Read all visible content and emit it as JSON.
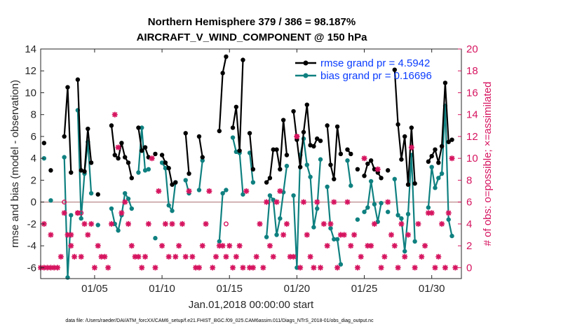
{
  "chart_data": {
    "type": "line",
    "title_line1": "Northern Hemisphere 379 / 386 = 98.187%",
    "title_line2": "AIRCRAFT_V_WIND_COMPONENT @ 150 hPa",
    "xlabel": "Jan.01,2018 00:00:00 start",
    "ylabel": "rmse and bias (model - observation)",
    "y2label": "# of obs: o=possible; ×=assimilated",
    "xlim": [
      1.0,
      32.2
    ],
    "ylim": [
      -7,
      14
    ],
    "y2lim": [
      -1,
      20
    ],
    "xticks": [
      5,
      10,
      15,
      20,
      25,
      30
    ],
    "xtick_labels": [
      "01/05",
      "01/10",
      "01/15",
      "01/20",
      "01/25",
      "01/30"
    ],
    "yticks": [
      -6,
      -4,
      -2,
      0,
      2,
      4,
      6,
      8,
      10,
      12,
      14
    ],
    "y2ticks": [
      0,
      2,
      4,
      6,
      8,
      10,
      12,
      14,
      16,
      18,
      20
    ],
    "colors": {
      "rmse": "#000000",
      "bias": "#0f8080",
      "obs": "#d6145f",
      "zero_line": "#c8a0a0",
      "axis": "#262626",
      "legend_text": "#0a3cff"
    },
    "series": [
      {
        "name": "rmse",
        "legend": "rmse grand pr = 4.5942",
        "points": [
          [
            1.25,
            5.4
          ],
          [
            1.75,
            2.9
          ],
          [
            2.75,
            6.0
          ],
          [
            3.0,
            10.5
          ],
          [
            3.25,
            2.7
          ],
          [
            3.75,
            11.2
          ],
          [
            4.0,
            2.9
          ],
          [
            4.25,
            2.8
          ],
          [
            4.5,
            6.7
          ],
          [
            4.75,
            3.6
          ],
          [
            5.25,
            0.7
          ],
          [
            6.25,
            7.0
          ],
          [
            6.5,
            4.3
          ],
          [
            6.75,
            4.0
          ],
          [
            7.0,
            5.4
          ],
          [
            7.25,
            4.1
          ],
          [
            7.5,
            3.6
          ],
          [
            7.75,
            2.2
          ],
          [
            8.25,
            6.8
          ],
          [
            8.5,
            4.7
          ],
          [
            8.75,
            5.0
          ],
          [
            9.0,
            4.1
          ],
          [
            9.5,
            4.4
          ],
          [
            10.0,
            4.3
          ],
          [
            10.25,
            3.6
          ],
          [
            10.5,
            3.1
          ],
          [
            10.75,
            1.6
          ],
          [
            11.0,
            1.8
          ],
          [
            11.75,
            6.3
          ],
          [
            12.0,
            2.6
          ],
          [
            12.75,
            6.0
          ],
          [
            13.0,
            4.1
          ],
          [
            14.25,
            6.5
          ],
          [
            14.5,
            11.8
          ],
          [
            14.75,
            13.3
          ],
          [
            15.25,
            6.8
          ],
          [
            15.5,
            8.7
          ],
          [
            15.75,
            4.7
          ],
          [
            16.0,
            13.0
          ],
          [
            16.5,
            6.3
          ],
          [
            16.75,
            3.0
          ],
          [
            17.75,
            1.8
          ],
          [
            18.0,
            2.2
          ],
          [
            18.25,
            4.8
          ],
          [
            18.5,
            4.8
          ],
          [
            18.75,
            3.0
          ],
          [
            19.0,
            7.5
          ],
          [
            19.25,
            4.3
          ],
          [
            19.75,
            8.3
          ],
          [
            20.0,
            5.7
          ],
          [
            20.25,
            3.2
          ],
          [
            20.5,
            6.4
          ],
          [
            20.75,
            8.9
          ],
          [
            21.0,
            5.2
          ],
          [
            21.25,
            5.1
          ],
          [
            21.5,
            5.8
          ],
          [
            21.75,
            5.6
          ],
          [
            22.25,
            7.0
          ],
          [
            22.5,
            3.4
          ],
          [
            22.75,
            2.1
          ],
          [
            23.0,
            6.9
          ],
          [
            23.25,
            4.4
          ],
          [
            23.75,
            4.8
          ],
          [
            24.0,
            4.4
          ],
          [
            24.5,
            3.0
          ],
          [
            25.0,
            2.4
          ],
          [
            25.25,
            3.5
          ],
          [
            25.5,
            3.8
          ],
          [
            25.75,
            3.0
          ],
          [
            26.0,
            2.7
          ],
          [
            26.25,
            2.2
          ],
          [
            26.75,
            2.9
          ],
          [
            27.25,
            12.1
          ],
          [
            27.5,
            7.1
          ],
          [
            27.75,
            3.9
          ],
          [
            28.0,
            6.0
          ],
          [
            28.25,
            1.6
          ],
          [
            28.5,
            6.8
          ],
          [
            28.75,
            1.7
          ],
          [
            29.75,
            3.7
          ],
          [
            30.0,
            4.2
          ],
          [
            30.25,
            4.8
          ],
          [
            30.5,
            3.6
          ],
          [
            30.75,
            5.1
          ],
          [
            31.0,
            10.9
          ],
          [
            31.25,
            5.5
          ],
          [
            31.5,
            5.7
          ]
        ]
      },
      {
        "name": "bias",
        "legend": "bias grand pr = 0.16696",
        "points": [
          [
            1.25,
            4.0
          ],
          [
            1.75,
            0.15
          ],
          [
            2.75,
            4.1
          ],
          [
            3.0,
            -6.9
          ],
          [
            3.25,
            -1.2
          ],
          [
            3.75,
            8.4
          ],
          [
            4.0,
            -1.5
          ],
          [
            4.25,
            2.6
          ],
          [
            4.5,
            5.5
          ],
          [
            4.75,
            0.8
          ],
          [
            5.25,
            -2.1
          ],
          [
            6.25,
            -0.6
          ],
          [
            6.5,
            -2.0
          ],
          [
            6.75,
            -2.6
          ],
          [
            7.0,
            -1.2
          ],
          [
            7.25,
            0.8
          ],
          [
            7.5,
            0.3
          ],
          [
            7.75,
            -0.6
          ],
          [
            8.25,
            2.7
          ],
          [
            8.5,
            6.8
          ],
          [
            8.75,
            2.9
          ],
          [
            9.0,
            3.0
          ],
          [
            9.5,
            -3.3
          ],
          [
            10.0,
            3.6
          ],
          [
            10.25,
            3.1
          ],
          [
            10.5,
            -0.3
          ],
          [
            10.75,
            -0.8
          ],
          [
            11.0,
            1.8
          ],
          [
            11.75,
            2.0
          ],
          [
            12.0,
            0.8
          ],
          [
            12.75,
            1.1
          ],
          [
            13.0,
            3.8
          ],
          [
            14.25,
            -3.6
          ],
          [
            14.5,
            0.8
          ],
          [
            14.75,
            1.1
          ],
          [
            15.25,
            5.9
          ],
          [
            15.5,
            4.6
          ],
          [
            15.75,
            4.5
          ],
          [
            16.0,
            0.7
          ],
          [
            16.5,
            4.5
          ],
          [
            16.75,
            1.8
          ],
          [
            17.75,
            -3.2
          ],
          [
            18.0,
            0.6
          ],
          [
            18.25,
            0.2
          ],
          [
            18.5,
            -3.0
          ],
          [
            18.75,
            -1.5
          ],
          [
            19.0,
            0.9
          ],
          [
            19.25,
            3.3
          ],
          [
            19.75,
            0.6
          ],
          [
            20.0,
            -6.0
          ],
          [
            20.25,
            4.3
          ],
          [
            20.5,
            5.8
          ],
          [
            20.75,
            3.4
          ],
          [
            21.0,
            2.3
          ],
          [
            21.25,
            -2.3
          ],
          [
            21.5,
            -0.6
          ],
          [
            21.75,
            3.9
          ],
          [
            22.25,
            1.4
          ],
          [
            22.5,
            -2.4
          ],
          [
            22.75,
            -3.4
          ],
          [
            23.0,
            -3.4
          ],
          [
            23.25,
            -5.7
          ],
          [
            23.75,
            3.8
          ],
          [
            24.0,
            1.5
          ],
          [
            24.5,
            -1.6
          ],
          [
            25.0,
            -0.9
          ],
          [
            25.25,
            -0.5
          ],
          [
            25.5,
            1.9
          ],
          [
            25.75,
            -0.2
          ],
          [
            26.0,
            -1.8
          ],
          [
            26.25,
            -0.1
          ],
          [
            26.75,
            -0.9
          ],
          [
            27.25,
            2.1
          ],
          [
            27.5,
            -1.2
          ],
          [
            27.75,
            -1.5
          ],
          [
            28.0,
            -4.5
          ],
          [
            28.25,
            -1.1
          ],
          [
            28.5,
            4.3
          ],
          [
            28.75,
            -3.6
          ],
          [
            29.75,
            -0.5
          ],
          [
            30.0,
            3.2
          ],
          [
            30.25,
            1.3
          ],
          [
            30.5,
            2.2
          ],
          [
            30.75,
            2.6
          ],
          [
            31.0,
            8.8
          ],
          [
            31.25,
            -1.6
          ],
          [
            31.5,
            -3.1
          ]
        ]
      },
      {
        "name": "obs_assimilated",
        "axis": "right",
        "marker": "asterisk",
        "points": [
          [
            1.0,
            0
          ],
          [
            1.25,
            0
          ],
          [
            1.5,
            0
          ],
          [
            1.75,
            0
          ],
          [
            2.0,
            0
          ],
          [
            2.25,
            0
          ],
          [
            1.25,
            4
          ],
          [
            1.75,
            3
          ],
          [
            2.75,
            5
          ],
          [
            2.5,
            1
          ],
          [
            3.0,
            3
          ],
          [
            3.25,
            3
          ],
          [
            3.5,
            1
          ],
          [
            3.25,
            2
          ],
          [
            3.75,
            5
          ],
          [
            4.0,
            1
          ],
          [
            4.25,
            4
          ],
          [
            4.5,
            3
          ],
          [
            4.75,
            4
          ],
          [
            5.0,
            0
          ],
          [
            5.25,
            2
          ],
          [
            5.5,
            1
          ],
          [
            5.75,
            1
          ],
          [
            6.0,
            0
          ],
          [
            6.25,
            4
          ],
          [
            6.5,
            14
          ],
          [
            6.75,
            11
          ],
          [
            7.0,
            5
          ],
          [
            7.25,
            6
          ],
          [
            7.5,
            4
          ],
          [
            7.75,
            2
          ],
          [
            8.0,
            1
          ],
          [
            8.25,
            1
          ],
          [
            8.5,
            0
          ],
          [
            8.75,
            1
          ],
          [
            9.0,
            4
          ],
          [
            9.25,
            10
          ],
          [
            9.5,
            0
          ],
          [
            9.75,
            7
          ],
          [
            10.0,
            2
          ],
          [
            10.25,
            4
          ],
          [
            10.5,
            1
          ],
          [
            10.75,
            4
          ],
          [
            11.0,
            1
          ],
          [
            11.25,
            2
          ],
          [
            11.5,
            4
          ],
          [
            11.75,
            1
          ],
          [
            12.0,
            7
          ],
          [
            12.25,
            1
          ],
          [
            12.5,
            0
          ],
          [
            12.75,
            0
          ],
          [
            13.0,
            2
          ],
          [
            13.25,
            4
          ],
          [
            13.5,
            7
          ],
          [
            13.75,
            0
          ],
          [
            14.0,
            1
          ],
          [
            14.25,
            2
          ],
          [
            14.5,
            2
          ],
          [
            14.75,
            1
          ],
          [
            15.0,
            2
          ],
          [
            15.25,
            0
          ],
          [
            15.5,
            1
          ],
          [
            15.75,
            2
          ],
          [
            16.0,
            0
          ],
          [
            16.25,
            7
          ],
          [
            16.5,
            0
          ],
          [
            16.75,
            0
          ],
          [
            17.0,
            1
          ],
          [
            17.25,
            4
          ],
          [
            17.5,
            0
          ],
          [
            17.75,
            6
          ],
          [
            18.0,
            2
          ],
          [
            18.25,
            1
          ],
          [
            18.5,
            6
          ],
          [
            18.75,
            7
          ],
          [
            19.0,
            3
          ],
          [
            19.25,
            4
          ],
          [
            19.5,
            1
          ],
          [
            19.75,
            1
          ],
          [
            20.0,
            12
          ],
          [
            20.25,
            0
          ],
          [
            20.5,
            6
          ],
          [
            20.75,
            3
          ],
          [
            21.0,
            1
          ],
          [
            21.25,
            0
          ],
          [
            21.5,
            6
          ],
          [
            21.75,
            0
          ],
          [
            22.0,
            4
          ],
          [
            22.25,
            2
          ],
          [
            22.5,
            4
          ],
          [
            22.75,
            6
          ],
          [
            23.0,
            0
          ],
          [
            23.25,
            3
          ],
          [
            23.5,
            3
          ],
          [
            23.75,
            6
          ],
          [
            24.0,
            2
          ],
          [
            24.25,
            3
          ],
          [
            24.5,
            0
          ],
          [
            24.75,
            1
          ],
          [
            25.0,
            10
          ],
          [
            25.25,
            2
          ],
          [
            25.5,
            2
          ],
          [
            25.75,
            4
          ],
          [
            26.0,
            9
          ],
          [
            26.25,
            0
          ],
          [
            26.5,
            1
          ],
          [
            26.75,
            6
          ],
          [
            27.0,
            3
          ],
          [
            27.25,
            2
          ],
          [
            27.5,
            0
          ],
          [
            27.75,
            4
          ],
          [
            28.0,
            1
          ],
          [
            28.25,
            3
          ],
          [
            28.5,
            11
          ],
          [
            28.75,
            0
          ],
          [
            29.0,
            4
          ],
          [
            29.25,
            1
          ],
          [
            29.5,
            2
          ],
          [
            29.75,
            5
          ],
          [
            30.0,
            5
          ],
          [
            30.25,
            0
          ],
          [
            30.5,
            1
          ],
          [
            30.75,
            4
          ],
          [
            31.0,
            0
          ],
          [
            31.25,
            5
          ],
          [
            31.5,
            10
          ],
          [
            31.75,
            0
          ]
        ]
      },
      {
        "name": "obs_possible",
        "axis": "right",
        "marker": "circle",
        "points": [
          [
            2.75,
            6
          ],
          [
            3.75,
            5
          ],
          [
            4.0,
            5
          ],
          [
            14.75,
            4
          ],
          [
            20.0,
            12
          ]
        ]
      }
    ]
  },
  "footer": "data file: /Users/raeder/DAI/ATM_forcXX/CAM6_setup/f.e21.FHIST_BGC.f09_025.CAM6assim.011/Diags_NTrS_2018-01/obs_diag_output.nc"
}
